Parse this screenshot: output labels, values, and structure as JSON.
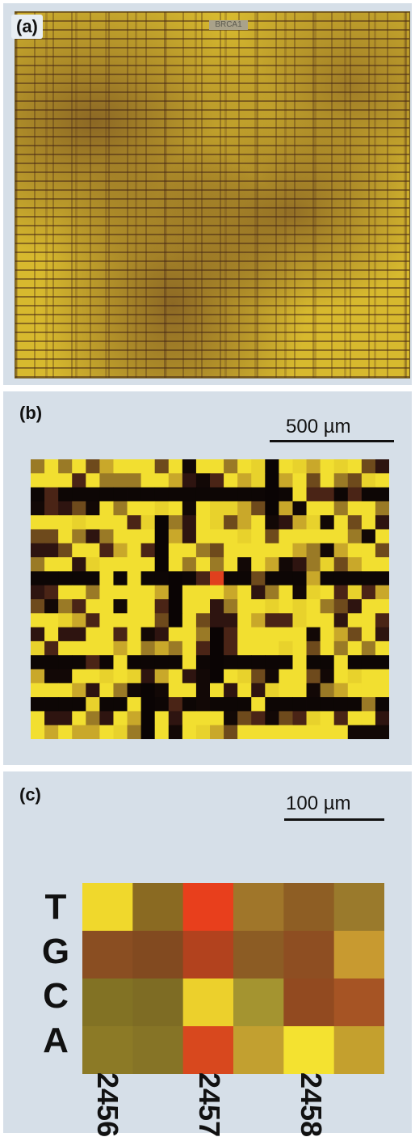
{
  "panels": {
    "a": {
      "label": "(a)",
      "chip_text": "BRCA1"
    },
    "b": {
      "label": "(b)",
      "scale_bar": "500 µm"
    },
    "c": {
      "label": "(c)",
      "scale_bar": "100 µm",
      "bases": [
        "T",
        "G",
        "C",
        "A"
      ],
      "positions": [
        "2456",
        "2457",
        "2458"
      ]
    }
  },
  "colors": {
    "panel_bg": "#d6dfe8",
    "bright_yellow": "#f2df30",
    "dark_brown": "#3a1810",
    "red": "#e0401e"
  },
  "heatmap_c_colors": [
    [
      "#f0d82c",
      "#8a6a22",
      "#e83f1c",
      "#a0762a",
      "#8e5e24",
      "#9a7a2c"
    ],
    [
      "#8a4e22",
      "#824a20",
      "#b2421e",
      "#8c5c24",
      "#8e4e22",
      "#c89a30"
    ],
    [
      "#827224",
      "#7e6c24",
      "#ecd02c",
      "#a49430",
      "#924a20",
      "#a65424"
    ],
    [
      "#8c7a26",
      "#867426",
      "#d8481e",
      "#c2a030",
      "#f4e230",
      "#c4a02e"
    ]
  ]
}
